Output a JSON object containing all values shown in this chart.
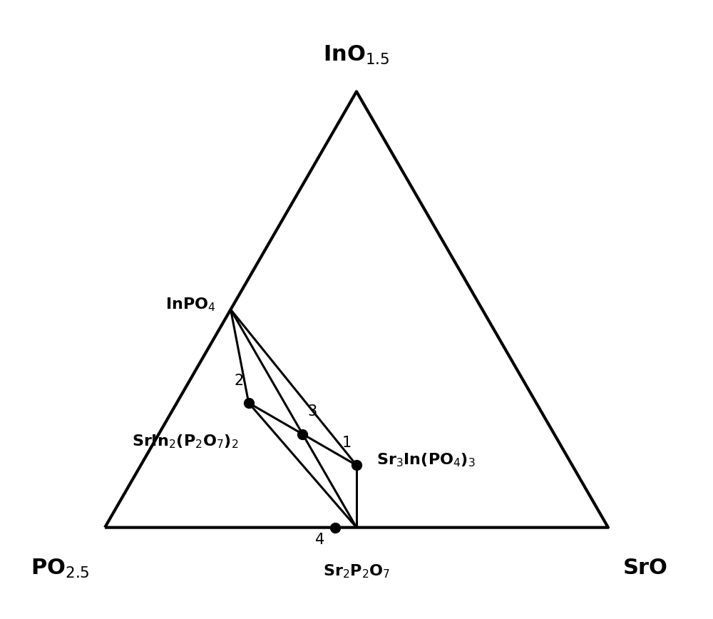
{
  "bg_color": "#ffffff",
  "lw_outer": 3.0,
  "lw_inner": 2.2,
  "marker_size": 10,
  "fs_vertex": 22,
  "fs_compound": 16,
  "fs_point": 15,
  "figwidth": 10.0,
  "figheight": 8.68,
  "dpi": 100
}
